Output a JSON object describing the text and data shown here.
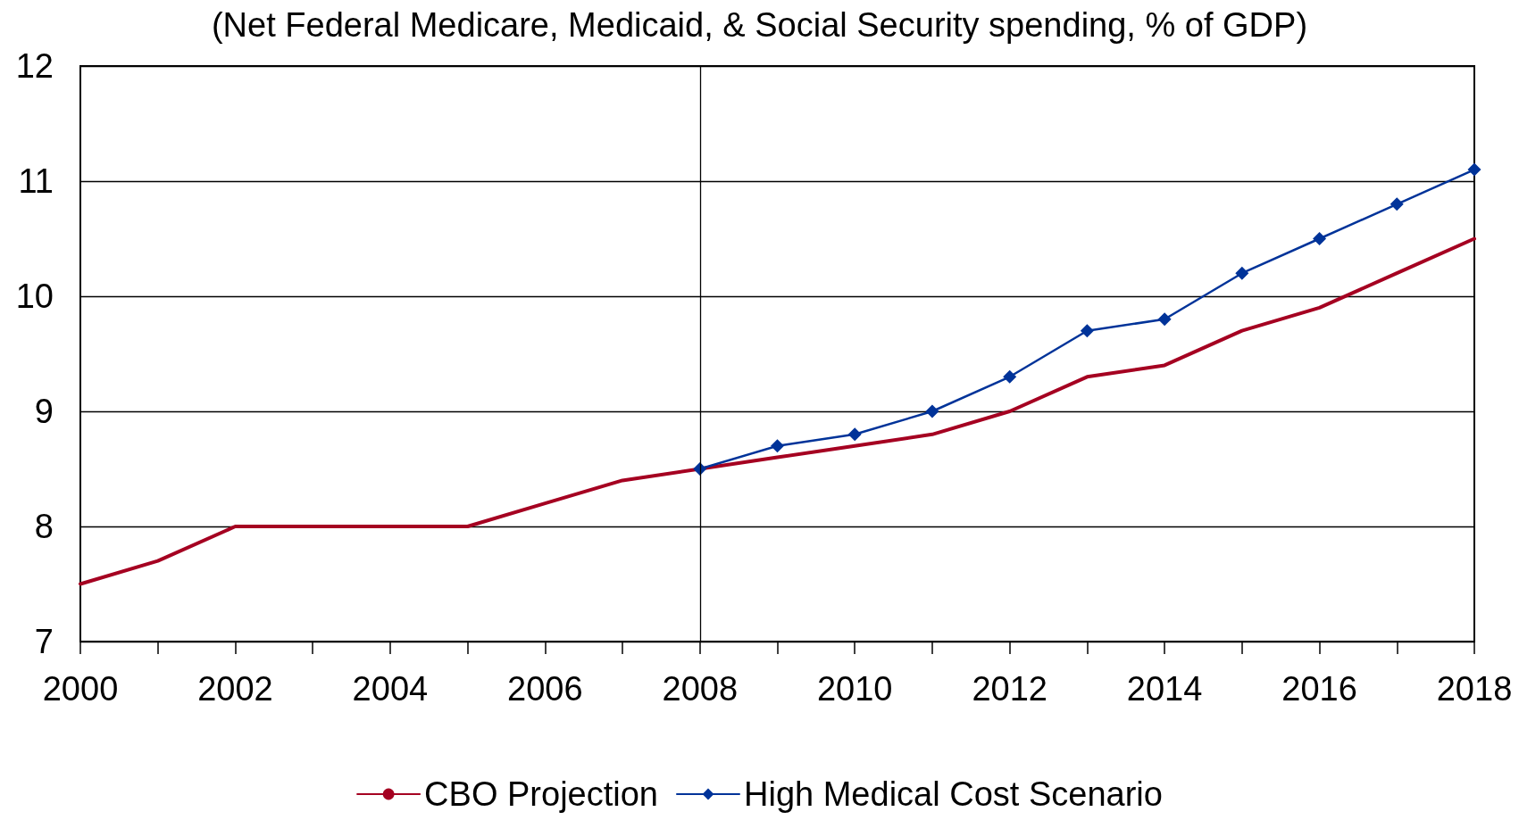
{
  "chart_data": {
    "type": "line",
    "title": "(Net Federal Medicare, Medicaid, & Social Security spending, % of GDP)",
    "x": [
      2000,
      2001,
      2002,
      2003,
      2004,
      2005,
      2006,
      2007,
      2008,
      2009,
      2010,
      2011,
      2012,
      2013,
      2014,
      2015,
      2016,
      2017,
      2018
    ],
    "series": [
      {
        "name": "CBO Projection",
        "color": "#a50021",
        "marker": "none",
        "values": [
          7.5,
          7.7,
          8.0,
          8.0,
          8.0,
          8.0,
          8.2,
          8.4,
          8.5,
          8.6,
          8.7,
          8.8,
          9.0,
          9.3,
          9.4,
          9.7,
          9.9,
          10.2,
          10.5
        ]
      },
      {
        "name": "High Medical Cost Scenario",
        "color": "#003399",
        "marker": "diamond",
        "values": [
          null,
          null,
          null,
          null,
          null,
          null,
          null,
          null,
          8.5,
          8.7,
          8.8,
          9.0,
          9.3,
          9.7,
          9.8,
          10.2,
          10.5,
          10.8,
          11.1
        ]
      }
    ],
    "xlim": [
      2000,
      2018
    ],
    "xticks": [
      2000,
      {
        "value": 2001,
        "label": null
      },
      2002,
      {
        "value": 2003,
        "label": null
      },
      2004,
      {
        "value": 2005,
        "label": null
      },
      2006,
      {
        "value": 2007,
        "label": null
      },
      2008,
      {
        "value": 2009,
        "label": null
      },
      2010,
      {
        "value": 2011,
        "label": null
      },
      2012,
      {
        "value": 2013,
        "label": null
      },
      2014,
      {
        "value": 2015,
        "label": null
      },
      2016,
      {
        "value": 2017,
        "label": null
      },
      2018
    ],
    "ylim": [
      7,
      12
    ],
    "yticks": [
      7,
      8,
      9,
      10,
      11,
      12
    ],
    "grid": "y",
    "legend": "bottom",
    "line_style": "solid",
    "ref_lines": [
      {
        "axis": "x",
        "value": 2008,
        "color": "#000000"
      }
    ]
  }
}
